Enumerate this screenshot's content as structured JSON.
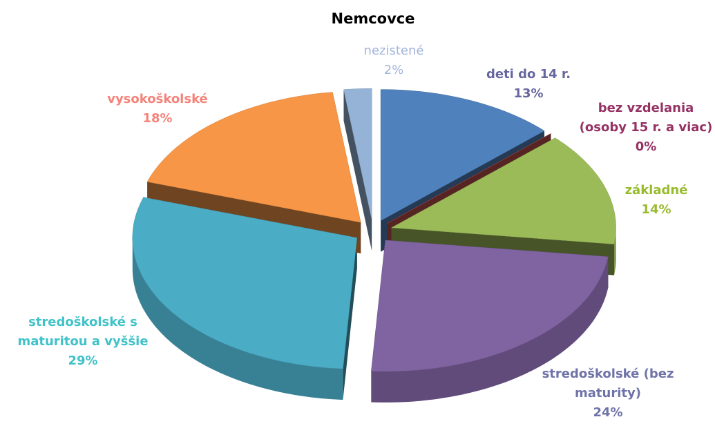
{
  "chart_data": {
    "type": "pie3d",
    "title": "Nemcovce",
    "categories": [
      "deti do 14 r.",
      "bez vzdelania (osoby 15 r. a viac)",
      "základné",
      "stredoškolské (bez maturity)",
      "stredoškolské s maturitou a vyššie",
      "vysokoškolské",
      "nezistené"
    ],
    "values": [
      13,
      0,
      14,
      24,
      29,
      18,
      2
    ],
    "value_labels": [
      "13%",
      "0%",
      "14%",
      "24%",
      "29%",
      "18%",
      "2%"
    ],
    "colors": [
      "#4f81bd",
      "#c0504d",
      "#9bbb59",
      "#8064a2",
      "#4bacc6",
      "#f79646",
      "#95b3d7"
    ],
    "label_colors": [
      "#66679f",
      "#953163",
      "#98bb2c",
      "#6f73a8",
      "#3fc2c8",
      "#f4837a",
      "#a3b5dc"
    ]
  }
}
